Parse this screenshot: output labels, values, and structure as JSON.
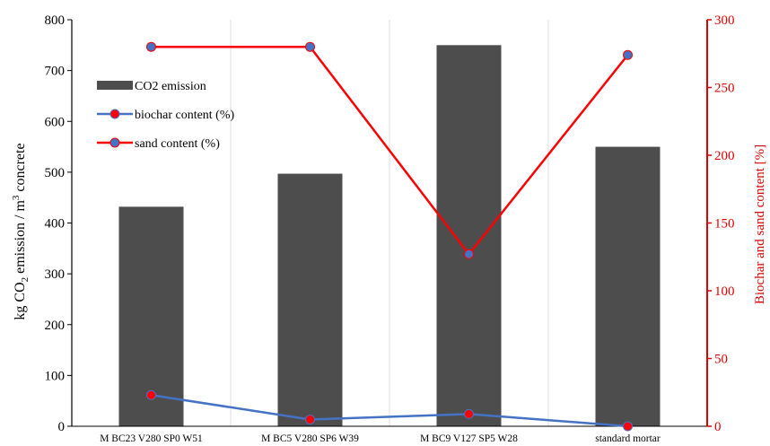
{
  "chart_data": {
    "type": "bar",
    "categories": [
      "M  BC23  V280  SP0  W51",
      "M  BC5  V280  SP6  W39",
      "M  BC9  V127  SP5  W28",
      "standard mortar"
    ],
    "series": [
      {
        "name": "CO2 emission",
        "type": "bar",
        "axis": "left",
        "values": [
          432,
          497,
          750,
          550
        ],
        "color": "#4d4d4d"
      },
      {
        "name": "biochar content (%)",
        "type": "line",
        "axis": "right",
        "values": [
          23,
          5,
          9,
          0
        ],
        "line_color": "#4472c4",
        "marker_color": "#ff0000"
      },
      {
        "name": "sand content (%)",
        "type": "line",
        "axis": "right",
        "values": [
          280,
          280,
          127,
          274
        ],
        "line_color": "#ff0000",
        "marker_color": "#4472c4"
      }
    ],
    "ylabel": {
      "pre": "kg CO",
      "sub": "2",
      "mid": " emission / m",
      "sup": "3",
      "post": " concrete"
    },
    "y2label": "Biochar and sand content [%]",
    "ylim": [
      0,
      800
    ],
    "y2lim": [
      0,
      300
    ],
    "yticks": [
      0,
      100,
      200,
      300,
      400,
      500,
      600,
      700,
      800
    ],
    "y2ticks": [
      0,
      50,
      100,
      150,
      200,
      250,
      300
    ],
    "grid": false,
    "legend_position": "top-left",
    "right_axis_color": "#e00000"
  }
}
